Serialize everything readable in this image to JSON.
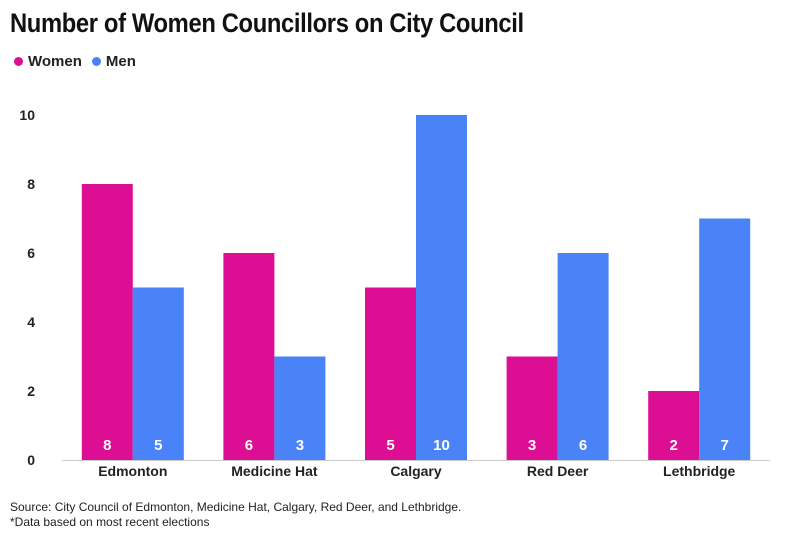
{
  "title": "Number of Women Councillors on City Council",
  "colors": {
    "women": "#dc0f94",
    "men": "#4a82f7"
  },
  "footer": {
    "source": "Source: City Council of Edmonton, Medicine Hat, Calgary, Red Deer, and Lethbridge.",
    "note": "*Data based on most recent elections"
  },
  "chart_data": {
    "type": "bar",
    "title": "Number of Women Councillors on City Council",
    "categories": [
      "Edmonton",
      "Medicine Hat",
      "Calgary",
      "Red Deer",
      "Lethbridge"
    ],
    "series": [
      {
        "name": "Women",
        "values": [
          8,
          6,
          5,
          3,
          2
        ]
      },
      {
        "name": "Men",
        "values": [
          5,
          3,
          10,
          6,
          7
        ]
      }
    ],
    "ylim": [
      0,
      10
    ],
    "yticks": [
      0,
      2,
      4,
      6,
      8,
      10
    ],
    "xlabel": "",
    "ylabel": "",
    "legend": "top-left",
    "grid": false
  }
}
